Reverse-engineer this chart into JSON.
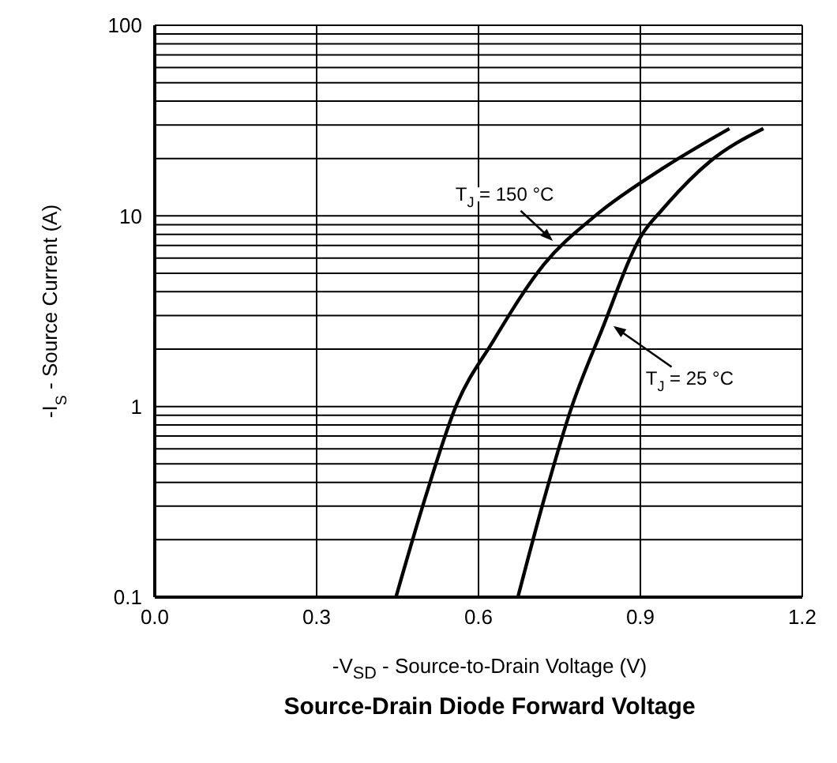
{
  "chart_data": {
    "type": "line",
    "title": "Source-Drain Diode Forward Voltage",
    "xlabel": "-V$_{SD}$ - Source-to-Drain Voltage (V)",
    "ylabel": "-I$_{S}$ - Source Current (A)",
    "series": [
      {
        "color": "#000000",
        "x": [
          0.447,
          0.501,
          0.558,
          0.627,
          0.722,
          0.816,
          0.942,
          1.065
        ],
        "values": [
          0.1,
          0.33,
          1.0,
          2.2,
          5.6,
          10,
          17.8,
          28.7
        ]
      },
      {
        "color": "#000000",
        "x": [
          0.673,
          0.722,
          0.773,
          0.828,
          0.902,
          0.942,
          1.028,
          1.128
        ],
        "values": [
          0.1,
          0.33,
          1.0,
          2.5,
          7.9,
          10.9,
          19.2,
          28.7
        ]
      }
    ],
    "annotations": [
      {
        "text": "T$_{J}$ = 150 °C",
        "x": 0.742,
        "y": 7.2
      },
      {
        "text": "T$_{J}$ = 25 °C",
        "x": 0.845,
        "y": 2.7
      }
    ],
    "log": "y",
    "xlim": [
      0,
      1.2
    ],
    "ylim": [
      0.1,
      100
    ],
    "xticks": [
      {
        "value": 0,
        "label": "0.0"
      },
      0.3,
      0.6,
      0.9,
      1.2
    ],
    "yticks": [
      0.1,
      {
        "value": 0.2,
        "label": null
      },
      {
        "value": 0.3,
        "label": null
      },
      {
        "value": 0.4,
        "label": null
      },
      {
        "value": 0.5,
        "label": null
      },
      {
        "value": 0.6,
        "label": null
      },
      {
        "value": 0.7,
        "label": null
      },
      {
        "value": 0.8,
        "label": null
      },
      {
        "value": 0.9,
        "label": null
      },
      1,
      {
        "value": 2,
        "label": null
      },
      {
        "value": 3,
        "label": null
      },
      {
        "value": 4,
        "label": null
      },
      {
        "value": 5,
        "label": null
      },
      {
        "value": 6,
        "label": null
      },
      {
        "value": 7,
        "label": null
      },
      {
        "value": 8,
        "label": null
      },
      {
        "value": 9,
        "label": null
      },
      10,
      {
        "value": 20,
        "label": null
      },
      {
        "value": 30,
        "label": null
      },
      {
        "value": 40,
        "label": null
      },
      {
        "value": 50,
        "label": null
      },
      {
        "value": 60,
        "label": null
      },
      {
        "value": 70,
        "label": null
      },
      {
        "value": 80,
        "label": null
      },
      {
        "value": 90,
        "label": null
      },
      100
    ],
    "grid": true,
    "marker": "none",
    "line_style": "solid"
  }
}
